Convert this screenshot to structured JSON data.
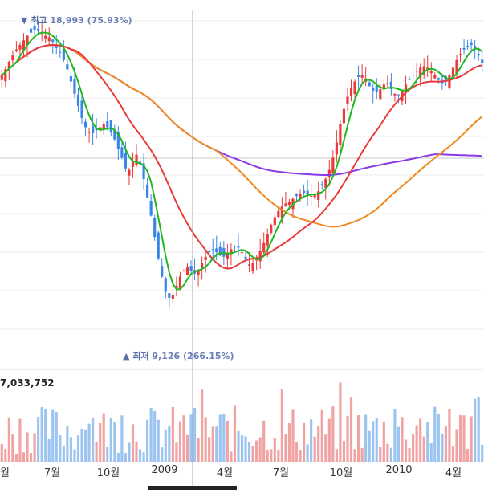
{
  "chart_data": {
    "type": "candlestick",
    "annotations": {
      "high": {
        "marker": "▼",
        "label": "최고",
        "value": "18,993 (75.93%)"
      },
      "low": {
        "marker": "▲",
        "label": "최저",
        "value": "9,126 (266.15%)"
      }
    },
    "volume_label": "7,033,752",
    "x_tick_labels": [
      "월",
      "7월",
      "10월",
      "2009",
      "4월",
      "7월",
      "10월",
      "2010",
      "4월"
    ],
    "colors": {
      "up": "#e83a3a",
      "down": "#3a86e8",
      "vol_up": "#f1a3a3",
      "vol_down": "#9cc4f0",
      "ma5": "#1fb81f",
      "ma20": "#e83a3a",
      "ma60": "#f08a1f",
      "ma120": "#8a3ae8",
      "grid": "#eeeeee",
      "crosshair": "#aaaaaa"
    },
    "ylim": [
      8600,
      19400
    ],
    "close_series": [
      17400,
      17600,
      17850,
      18050,
      18250,
      18400,
      18550,
      18700,
      18800,
      18900,
      18880,
      18750,
      18700,
      18650,
      18500,
      18300,
      18150,
      17900,
      17600,
      17200,
      16800,
      16400,
      16000,
      15700,
      15550,
      15500,
      15600,
      15700,
      15800,
      15700,
      15550,
      15300,
      15000,
      14700,
      14350,
      14300,
      14600,
      14800,
      14500,
      14000,
      13400,
      12800,
      12100,
      11400,
      10800,
      10300,
      10100,
      10200,
      10500,
      10800,
      11000,
      11100,
      11000,
      10900,
      11000,
      11250,
      11450,
      11600,
      11700,
      11600,
      11500,
      11450,
      11550,
      11700,
      11800,
      11750,
      11600,
      11400,
      11200,
      11250,
      11400,
      11650,
      11900,
      12200,
      12500,
      12750,
      12950,
      13100,
      13200,
      13250,
      13350,
      13450,
      13500,
      13550,
      13500,
      13450,
      13500,
      13600,
      13800,
      14000,
      14300,
      14700,
      15200,
      15800,
      16300,
      16700,
      17000,
      17200,
      17350,
      17400,
      17300,
      17050,
      16900,
      16850,
      16950,
      17100,
      17150,
      16950,
      16800,
      16750,
      16900,
      17100,
      17250,
      17400,
      17550,
      17650,
      17700,
      17650,
      17550,
      17400,
      17250,
      17150,
      17200,
      17400,
      17650,
      17900,
      18100,
      18250,
      18350,
      18400,
      18300,
      18050,
      17800
    ]
  }
}
